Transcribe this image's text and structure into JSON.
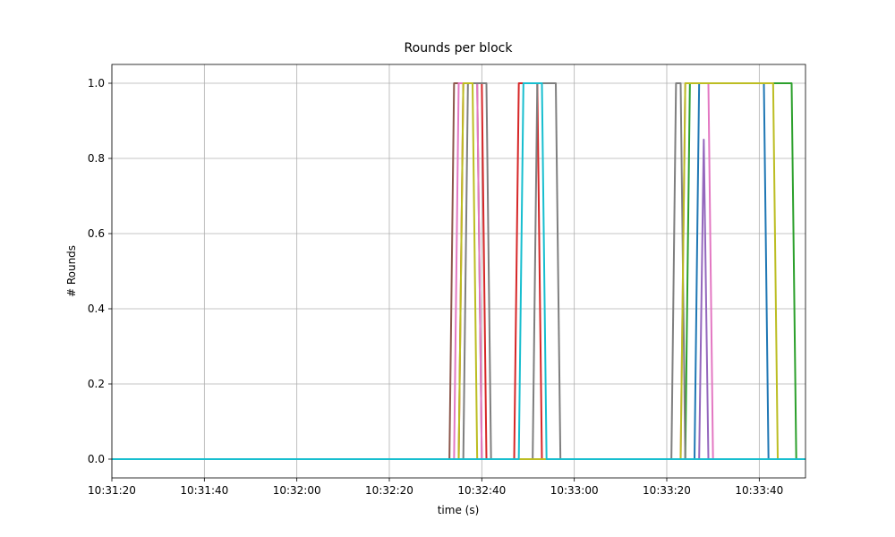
{
  "chart_data": {
    "type": "line",
    "title": "Rounds per block",
    "x_label": "time (s)",
    "y_label": "# Rounds",
    "xlim": [
      "10:31:20",
      "10:33:50"
    ],
    "xticks": [
      "10:31:20",
      "10:31:40",
      "10:32:00",
      "10:32:20",
      "10:32:40",
      "10:33:00",
      "10:33:20",
      "10:33:40"
    ],
    "ylim": [
      -0.05,
      1.05
    ],
    "yticks": [
      {
        "value": 0,
        "label": "0.0"
      },
      {
        "value": 0.2,
        "label": "0.2"
      },
      {
        "value": 0.4,
        "label": "0.4"
      },
      {
        "value": 0.6,
        "label": "0.6"
      },
      {
        "value": 0.8,
        "label": "0.8"
      },
      {
        "value": 1,
        "label": "1.0"
      }
    ],
    "grid": true,
    "series": [
      {
        "color": "#1f77b4",
        "x": [
          "10:31:20",
          "10:33:26",
          "10:33:27",
          "10:33:41",
          "10:33:42",
          "10:33:50"
        ],
        "values": [
          0,
          0,
          1,
          1,
          0,
          0
        ]
      },
      {
        "color": "#ff7f0e",
        "x": [
          "10:31:20",
          "10:33:50"
        ],
        "values": [
          0,
          0
        ]
      },
      {
        "color": "#2ca02c",
        "x": [
          "10:31:20",
          "10:33:24",
          "10:33:25",
          "10:33:47",
          "10:33:48",
          "10:33:50"
        ],
        "values": [
          0,
          0,
          1,
          1,
          0,
          0
        ]
      },
      {
        "color": "#d62728",
        "x": [
          "10:31:20",
          "10:32:35",
          "10:32:36",
          "10:32:40",
          "10:32:41",
          "10:32:47",
          "10:32:48",
          "10:32:52",
          "10:32:53",
          "10:33:50"
        ],
        "values": [
          0,
          0,
          1,
          1,
          0,
          0,
          1,
          1,
          0,
          0
        ]
      },
      {
        "color": "#9467bd",
        "x": [
          "10:31:20",
          "10:33:27",
          "10:33:28",
          "10:33:29",
          "10:33:50"
        ],
        "values": [
          0,
          0,
          0.85,
          0,
          0
        ]
      },
      {
        "color": "#8c564b",
        "x": [
          "10:31:20",
          "10:32:33",
          "10:32:34",
          "10:32:39",
          "10:32:40",
          "10:33:50"
        ],
        "values": [
          0,
          0,
          1,
          1,
          0,
          0
        ]
      },
      {
        "color": "#e377c2",
        "x": [
          "10:31:20",
          "10:32:34",
          "10:32:35",
          "10:32:39",
          "10:32:40",
          "10:33:23",
          "10:33:24",
          "10:33:29",
          "10:33:30",
          "10:33:50"
        ],
        "values": [
          0,
          0,
          1,
          1,
          0,
          0,
          1,
          1,
          0,
          0
        ]
      },
      {
        "color": "#7f7f7f",
        "x": [
          "10:31:20",
          "10:32:36",
          "10:32:37",
          "10:32:41",
          "10:32:42",
          "10:32:51",
          "10:32:52",
          "10:32:56",
          "10:32:57",
          "10:33:21",
          "10:33:22",
          "10:33:23",
          "10:33:24",
          "10:33:50"
        ],
        "values": [
          0,
          0,
          1,
          1,
          0,
          0,
          1,
          1,
          0,
          0,
          1,
          1,
          0,
          0
        ]
      },
      {
        "color": "#bcbd22",
        "x": [
          "10:31:20",
          "10:32:35",
          "10:32:36",
          "10:32:38",
          "10:32:39",
          "10:33:23",
          "10:33:24",
          "10:33:43",
          "10:33:44",
          "10:33:50"
        ],
        "values": [
          0,
          0,
          1,
          1,
          0,
          0,
          1,
          1,
          0,
          0
        ]
      },
      {
        "color": "#17becf",
        "x": [
          "10:31:20",
          "10:32:48",
          "10:32:49",
          "10:32:53",
          "10:32:54",
          "10:33:50"
        ],
        "values": [
          0,
          0,
          1,
          1,
          0,
          0
        ]
      }
    ]
  }
}
